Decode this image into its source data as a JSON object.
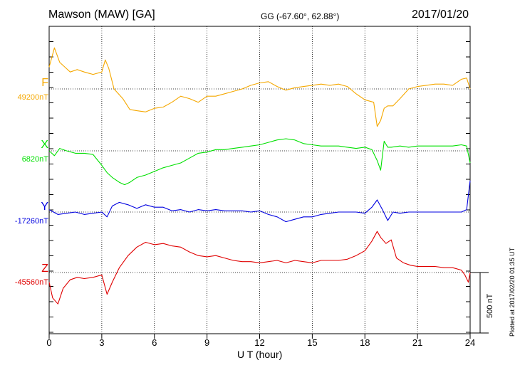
{
  "header": {
    "station": "Mawson (MAW)  [GA]",
    "coords": "GG (-67.60°,  62.88°)",
    "date": "2017/01/20"
  },
  "footer": {
    "xlabel": "U T (hour)",
    "plotted": "Plotted at 2017/02/20 01:35 UT",
    "scale_label": "500 nT"
  },
  "chart_data": {
    "type": "line",
    "xlabel": "U T (hour)",
    "xlim": [
      0,
      24
    ],
    "xticks": [
      0,
      3,
      6,
      9,
      12,
      15,
      18,
      21,
      24
    ],
    "vertical_grid": "dotted every 3 hours",
    "scale_bar_nT": 500,
    "series": [
      {
        "name": "F",
        "color": "#f5a800",
        "baseline_label": "49200nT",
        "baseline": 49200,
        "x": [
          0,
          0.3,
          0.6,
          0.9,
          1.2,
          1.6,
          2.0,
          2.5,
          3.0,
          3.2,
          3.4,
          3.7,
          4.2,
          4.6,
          5.0,
          5.5,
          6.0,
          6.5,
          7.0,
          7.5,
          8.0,
          8.5,
          9.0,
          9.5,
          10.0,
          10.5,
          11.0,
          11.5,
          12.0,
          12.5,
          13.0,
          13.5,
          14.0,
          14.5,
          15.0,
          15.5,
          16.0,
          16.5,
          17.0,
          17.5,
          18.0,
          18.5,
          18.7,
          18.9,
          19.1,
          19.3,
          19.6,
          20.0,
          20.5,
          21.0,
          21.5,
          22.0,
          22.5,
          23.0,
          23.5,
          23.8,
          24.0
        ],
        "y": [
          49380,
          49540,
          49420,
          49380,
          49340,
          49360,
          49340,
          49320,
          49340,
          49440,
          49370,
          49200,
          49120,
          49030,
          49020,
          49010,
          49040,
          49050,
          49090,
          49140,
          49120,
          49090,
          49140,
          49140,
          49160,
          49180,
          49200,
          49230,
          49250,
          49260,
          49220,
          49190,
          49210,
          49220,
          49230,
          49240,
          49230,
          49240,
          49220,
          49160,
          49110,
          49090,
          48890,
          48940,
          49040,
          49060,
          49060,
          49120,
          49200,
          49220,
          49230,
          49240,
          49240,
          49230,
          49280,
          49290,
          49200
        ]
      },
      {
        "name": "X",
        "color": "#00e000",
        "baseline_label": "6820nT",
        "baseline": 6820,
        "x": [
          0,
          0.3,
          0.6,
          1.0,
          1.5,
          2.0,
          2.5,
          3.0,
          3.3,
          3.6,
          4.0,
          4.3,
          4.6,
          5.0,
          5.5,
          6.0,
          6.5,
          7.0,
          7.5,
          8.0,
          8.5,
          9.0,
          9.5,
          10.0,
          10.5,
          11.0,
          11.5,
          12.0,
          12.5,
          13.0,
          13.5,
          14.0,
          14.5,
          15.0,
          15.5,
          16.0,
          16.5,
          17.0,
          17.5,
          18.0,
          18.4,
          18.7,
          18.9,
          19.1,
          19.3,
          19.5,
          20.0,
          20.5,
          21.0,
          21.5,
          22.0,
          22.5,
          23.0,
          23.5,
          23.8,
          24.0
        ],
        "y": [
          6820,
          6780,
          6840,
          6820,
          6800,
          6800,
          6790,
          6700,
          6640,
          6600,
          6560,
          6540,
          6560,
          6600,
          6620,
          6650,
          6680,
          6700,
          6720,
          6760,
          6800,
          6810,
          6830,
          6830,
          6840,
          6850,
          6860,
          6870,
          6890,
          6910,
          6920,
          6910,
          6880,
          6870,
          6860,
          6860,
          6860,
          6850,
          6840,
          6850,
          6830,
          6740,
          6660,
          6900,
          6850,
          6850,
          6860,
          6850,
          6860,
          6860,
          6860,
          6860,
          6860,
          6870,
          6860,
          6720
        ]
      },
      {
        "name": "Y",
        "color": "#0000e0",
        "baseline_label": "-17260nT",
        "baseline": -17260,
        "x": [
          0,
          0.5,
          1.0,
          1.5,
          2.0,
          2.5,
          3.0,
          3.3,
          3.6,
          4.0,
          4.5,
          5.0,
          5.5,
          6.0,
          6.5,
          7.0,
          7.5,
          8.0,
          8.5,
          9.0,
          9.5,
          10.0,
          10.5,
          11.0,
          11.5,
          12.0,
          12.5,
          13.0,
          13.5,
          14.0,
          14.5,
          15.0,
          15.5,
          16.0,
          16.5,
          17.0,
          17.5,
          18.0,
          18.4,
          18.7,
          19.0,
          19.3,
          19.6,
          20.0,
          20.5,
          21.0,
          21.5,
          22.0,
          22.5,
          23.0,
          23.5,
          23.8,
          24.0
        ],
        "y": [
          -17240,
          -17280,
          -17270,
          -17260,
          -17280,
          -17270,
          -17260,
          -17300,
          -17210,
          -17180,
          -17200,
          -17230,
          -17200,
          -17220,
          -17220,
          -17250,
          -17240,
          -17260,
          -17240,
          -17250,
          -17240,
          -17250,
          -17250,
          -17250,
          -17260,
          -17250,
          -17280,
          -17300,
          -17340,
          -17320,
          -17300,
          -17300,
          -17280,
          -17270,
          -17260,
          -17260,
          -17260,
          -17270,
          -17220,
          -17160,
          -17240,
          -17330,
          -17260,
          -17270,
          -17260,
          -17260,
          -17260,
          -17260,
          -17260,
          -17260,
          -17260,
          -17240,
          -17000
        ]
      },
      {
        "name": "Z",
        "color": "#e00000",
        "baseline_label": "-45560nT",
        "baseline": -45560,
        "x": [
          0,
          0.2,
          0.5,
          0.8,
          1.2,
          1.6,
          2.0,
          2.5,
          3.0,
          3.3,
          3.6,
          4.0,
          4.5,
          5.0,
          5.5,
          6.0,
          6.5,
          7.0,
          7.5,
          8.0,
          8.5,
          9.0,
          9.5,
          10.0,
          10.5,
          11.0,
          11.5,
          12.0,
          12.5,
          13.0,
          13.5,
          14.0,
          14.5,
          15.0,
          15.5,
          16.0,
          16.5,
          17.0,
          17.5,
          18.0,
          18.4,
          18.7,
          18.9,
          19.2,
          19.5,
          19.8,
          20.2,
          20.6,
          21.0,
          21.5,
          22.0,
          22.5,
          23.0,
          23.5,
          23.7,
          23.9,
          24.0
        ],
        "y": [
          -45640,
          -45770,
          -45820,
          -45690,
          -45620,
          -45600,
          -45610,
          -45600,
          -45580,
          -45740,
          -45640,
          -45520,
          -45420,
          -45350,
          -45310,
          -45330,
          -45320,
          -45340,
          -45350,
          -45390,
          -45420,
          -45430,
          -45420,
          -45440,
          -45460,
          -45470,
          -45470,
          -45480,
          -45470,
          -45460,
          -45480,
          -45460,
          -45470,
          -45480,
          -45460,
          -45460,
          -45460,
          -45450,
          -45420,
          -45380,
          -45300,
          -45220,
          -45270,
          -45320,
          -45290,
          -45440,
          -45480,
          -45500,
          -45510,
          -45510,
          -45510,
          -45520,
          -45520,
          -45540,
          -45580,
          -45640,
          -45560
        ]
      }
    ]
  }
}
